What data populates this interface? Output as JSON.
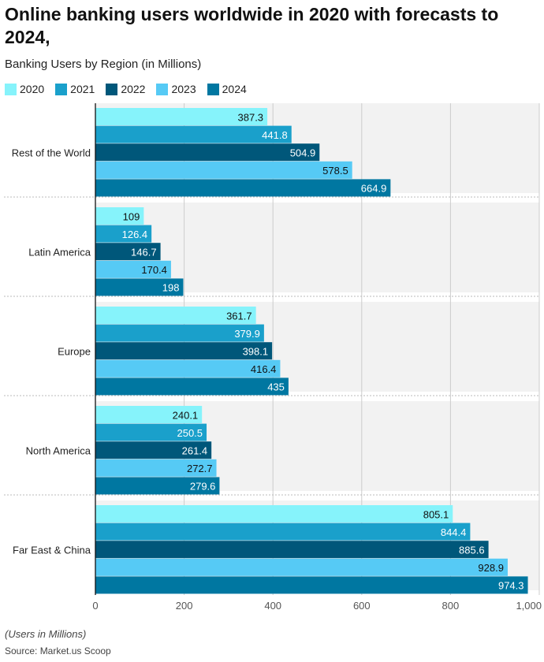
{
  "title": "Online banking users worldwide in 2020 with forecasts to 2024,",
  "subtitle": "Banking Users by Region (in Millions)",
  "note": "(Users in Millions)",
  "source": "Source: Market.us Scoop",
  "chart_data": {
    "type": "bar",
    "orientation": "horizontal",
    "categories": [
      "Rest of the World",
      "Latin America",
      "Europe",
      "North America",
      "Far East & China"
    ],
    "series": [
      {
        "name": "2020",
        "color": "#86F3FB",
        "label_color": "#111111",
        "values": [
          387.3,
          109,
          361.7,
          240.1,
          805.1
        ]
      },
      {
        "name": "2021",
        "color": "#1AA0CB",
        "label_color": "#ffffff",
        "values": [
          441.8,
          126.4,
          379.9,
          250.5,
          844.4
        ]
      },
      {
        "name": "2022",
        "color": "#00577A",
        "label_color": "#ffffff",
        "values": [
          504.9,
          146.7,
          398.1,
          261.4,
          885.6
        ]
      },
      {
        "name": "2023",
        "color": "#56CAF5",
        "label_color": "#111111",
        "values": [
          578.5,
          170.4,
          416.4,
          272.7,
          928.9
        ]
      },
      {
        "name": "2024",
        "color": "#0077A1",
        "label_color": "#ffffff",
        "values": [
          664.9,
          198,
          435,
          279.6,
          974.3
        ]
      }
    ],
    "xlim": [
      0,
      1000
    ],
    "xticks": [
      0,
      200,
      400,
      600,
      800,
      1000
    ],
    "xtick_labels": [
      "0",
      "200",
      "400",
      "600",
      "800",
      "1,000"
    ],
    "grid": true,
    "legend": "top-left"
  }
}
